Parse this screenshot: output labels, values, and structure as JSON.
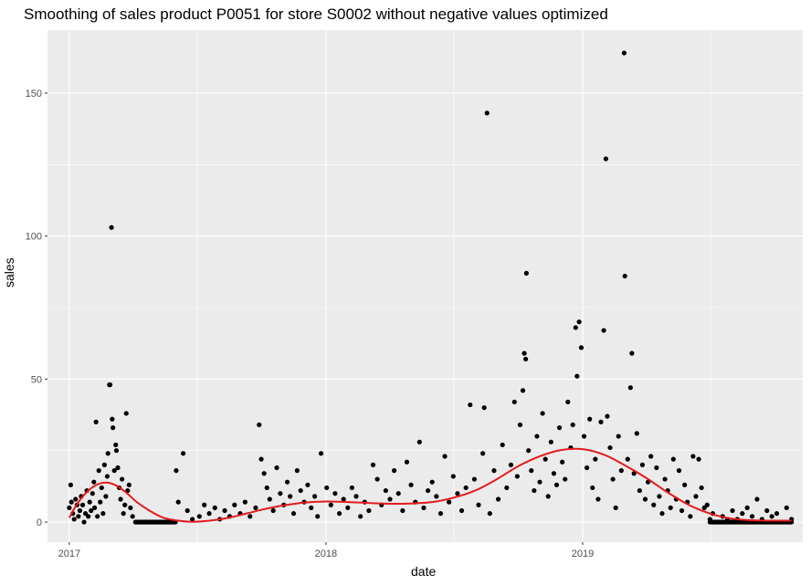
{
  "chart_data": {
    "type": "scatter",
    "title": "Smoothing of sales product P0051 for store S0002 without negative values optimized",
    "xlabel": "date",
    "ylabel": "sales",
    "x_ticks": [
      "2017",
      "2018",
      "2019"
    ],
    "y_ticks": [
      0,
      50,
      100,
      150
    ],
    "ylim": [
      -7,
      172
    ],
    "xlim": [
      "2016-12-01",
      "2019-11-10"
    ],
    "grid": true,
    "colors": {
      "points": "#000000",
      "smooth": "#e31a1c",
      "panel": "#ebebeb",
      "grid": "#ffffff"
    },
    "series": [
      {
        "kind": "points",
        "points": [
          [
            "2017-01-01",
            5
          ],
          [
            "2017-01-03",
            13
          ],
          [
            "2017-01-04",
            7
          ],
          [
            "2017-01-06",
            3
          ],
          [
            "2017-01-08",
            1
          ],
          [
            "2017-01-10",
            8
          ],
          [
            "2017-01-12",
            6
          ],
          [
            "2017-01-14",
            2
          ],
          [
            "2017-01-16",
            4
          ],
          [
            "2017-01-18",
            9
          ],
          [
            "2017-01-20",
            6
          ],
          [
            "2017-01-22",
            0
          ],
          [
            "2017-01-24",
            3
          ],
          [
            "2017-01-26",
            11
          ],
          [
            "2017-01-28",
            2
          ],
          [
            "2017-01-30",
            7
          ],
          [
            "2017-02-01",
            4
          ],
          [
            "2017-02-03",
            10
          ],
          [
            "2017-02-05",
            14
          ],
          [
            "2017-02-06",
            5
          ],
          [
            "2017-02-08",
            35
          ],
          [
            "2017-02-10",
            2
          ],
          [
            "2017-02-12",
            18
          ],
          [
            "2017-02-14",
            7
          ],
          [
            "2017-02-16",
            12
          ],
          [
            "2017-02-18",
            3
          ],
          [
            "2017-02-20",
            20
          ],
          [
            "2017-02-22",
            9
          ],
          [
            "2017-02-24",
            16
          ],
          [
            "2017-02-25",
            24
          ],
          [
            "2017-02-27",
            48
          ],
          [
            "2017-02-28",
            48
          ],
          [
            "2017-03-02",
            103
          ],
          [
            "2017-03-03",
            36
          ],
          [
            "2017-03-04",
            33
          ],
          [
            "2017-03-06",
            18
          ],
          [
            "2017-03-08",
            27
          ],
          [
            "2017-03-09",
            25
          ],
          [
            "2017-03-11",
            19
          ],
          [
            "2017-03-13",
            12
          ],
          [
            "2017-03-15",
            8
          ],
          [
            "2017-03-17",
            15
          ],
          [
            "2017-03-19",
            3
          ],
          [
            "2017-03-21",
            6
          ],
          [
            "2017-03-23",
            38
          ],
          [
            "2017-03-25",
            11
          ],
          [
            "2017-03-27",
            13
          ],
          [
            "2017-03-29",
            5
          ],
          [
            "2017-04-01",
            2
          ],
          [
            "2017-06-05",
            7
          ],
          [
            "2017-06-12",
            24
          ],
          [
            "2017-06-02",
            18
          ],
          [
            "2017-06-18",
            4
          ],
          [
            "2017-06-25",
            1
          ],
          [
            "2017-07-05",
            2
          ],
          [
            "2017-07-12",
            6
          ],
          [
            "2017-07-19",
            3
          ],
          [
            "2017-07-27",
            5
          ],
          [
            "2017-08-03",
            1
          ],
          [
            "2017-08-10",
            4
          ],
          [
            "2017-08-17",
            2
          ],
          [
            "2017-08-24",
            6
          ],
          [
            "2017-09-01",
            3
          ],
          [
            "2017-09-08",
            7
          ],
          [
            "2017-09-15",
            2
          ],
          [
            "2017-09-23",
            5
          ],
          [
            "2017-09-28",
            34
          ],
          [
            "2017-10-01",
            22
          ],
          [
            "2017-10-05",
            17
          ],
          [
            "2017-10-09",
            12
          ],
          [
            "2017-10-13",
            8
          ],
          [
            "2017-10-18",
            4
          ],
          [
            "2017-10-23",
            19
          ],
          [
            "2017-10-28",
            10
          ],
          [
            "2017-11-02",
            6
          ],
          [
            "2017-11-07",
            14
          ],
          [
            "2017-11-11",
            9
          ],
          [
            "2017-11-16",
            3
          ],
          [
            "2017-11-21",
            18
          ],
          [
            "2017-11-26",
            11
          ],
          [
            "2017-12-01",
            7
          ],
          [
            "2017-12-06",
            13
          ],
          [
            "2017-12-11",
            5
          ],
          [
            "2017-12-16",
            9
          ],
          [
            "2017-12-20",
            2
          ],
          [
            "2017-12-25",
            24
          ],
          [
            "2018-01-02",
            12
          ],
          [
            "2018-01-08",
            6
          ],
          [
            "2018-01-14",
            10
          ],
          [
            "2018-01-20",
            3
          ],
          [
            "2018-01-26",
            8
          ],
          [
            "2018-02-01",
            5
          ],
          [
            "2018-02-07",
            12
          ],
          [
            "2018-02-13",
            9
          ],
          [
            "2018-02-19",
            2
          ],
          [
            "2018-02-25",
            7
          ],
          [
            "2018-03-03",
            4
          ],
          [
            "2018-03-09",
            20
          ],
          [
            "2018-03-15",
            15
          ],
          [
            "2018-03-21",
            6
          ],
          [
            "2018-03-27",
            11
          ],
          [
            "2018-04-02",
            8
          ],
          [
            "2018-04-08",
            18
          ],
          [
            "2018-04-14",
            10
          ],
          [
            "2018-04-20",
            4
          ],
          [
            "2018-04-26",
            21
          ],
          [
            "2018-05-02",
            13
          ],
          [
            "2018-05-08",
            7
          ],
          [
            "2018-05-14",
            28
          ],
          [
            "2018-05-20",
            5
          ],
          [
            "2018-05-26",
            11
          ],
          [
            "2018-06-01",
            14
          ],
          [
            "2018-06-07",
            9
          ],
          [
            "2018-06-13",
            3
          ],
          [
            "2018-06-19",
            23
          ],
          [
            "2018-06-25",
            7
          ],
          [
            "2018-07-01",
            16
          ],
          [
            "2018-07-07",
            10
          ],
          [
            "2018-07-13",
            4
          ],
          [
            "2018-07-19",
            12
          ],
          [
            "2018-07-25",
            41
          ],
          [
            "2018-07-31",
            15
          ],
          [
            "2018-08-06",
            6
          ],
          [
            "2018-08-12",
            24
          ],
          [
            "2018-08-14",
            40
          ],
          [
            "2018-08-18",
            143
          ],
          [
            "2018-08-22",
            3
          ],
          [
            "2018-08-28",
            18
          ],
          [
            "2018-09-03",
            8
          ],
          [
            "2018-09-09",
            27
          ],
          [
            "2018-09-15",
            12
          ],
          [
            "2018-09-21",
            20
          ],
          [
            "2018-09-26",
            42
          ],
          [
            "2018-09-30",
            16
          ],
          [
            "2018-10-04",
            34
          ],
          [
            "2018-10-08",
            46
          ],
          [
            "2018-10-10",
            59
          ],
          [
            "2018-10-12",
            57
          ],
          [
            "2018-10-13",
            87
          ],
          [
            "2018-10-16",
            25
          ],
          [
            "2018-10-20",
            18
          ],
          [
            "2018-10-24",
            11
          ],
          [
            "2018-10-28",
            30
          ],
          [
            "2018-11-01",
            14
          ],
          [
            "2018-11-05",
            38
          ],
          [
            "2018-11-09",
            22
          ],
          [
            "2018-11-13",
            9
          ],
          [
            "2018-11-17",
            28
          ],
          [
            "2018-11-21",
            17
          ],
          [
            "2018-11-25",
            13
          ],
          [
            "2018-11-29",
            33
          ],
          [
            "2018-12-03",
            21
          ],
          [
            "2018-12-07",
            15
          ],
          [
            "2018-12-11",
            42
          ],
          [
            "2018-12-15",
            26
          ],
          [
            "2018-12-18",
            34
          ],
          [
            "2018-12-22",
            68
          ],
          [
            "2018-12-24",
            51
          ],
          [
            "2018-12-27",
            70
          ],
          [
            "2018-12-30",
            61
          ],
          [
            "2019-01-03",
            30
          ],
          [
            "2019-01-07",
            19
          ],
          [
            "2019-01-11",
            36
          ],
          [
            "2019-01-15",
            12
          ],
          [
            "2019-01-19",
            22
          ],
          [
            "2019-01-23",
            8
          ],
          [
            "2019-01-27",
            35
          ],
          [
            "2019-01-31",
            67
          ],
          [
            "2019-02-03",
            127
          ],
          [
            "2019-02-05",
            37
          ],
          [
            "2019-02-09",
            26
          ],
          [
            "2019-02-13",
            15
          ],
          [
            "2019-02-17",
            5
          ],
          [
            "2019-02-21",
            30
          ],
          [
            "2019-02-25",
            18
          ],
          [
            "2019-03-01",
            164
          ],
          [
            "2019-03-02",
            86
          ],
          [
            "2019-03-06",
            22
          ],
          [
            "2019-03-10",
            47
          ],
          [
            "2019-03-12",
            59
          ],
          [
            "2019-03-15",
            17
          ],
          [
            "2019-03-19",
            31
          ],
          [
            "2019-03-23",
            11
          ],
          [
            "2019-03-27",
            20
          ],
          [
            "2019-03-31",
            8
          ],
          [
            "2019-04-04",
            14
          ],
          [
            "2019-04-08",
            23
          ],
          [
            "2019-04-12",
            6
          ],
          [
            "2019-04-16",
            19
          ],
          [
            "2019-04-20",
            9
          ],
          [
            "2019-04-24",
            3
          ],
          [
            "2019-04-28",
            15
          ],
          [
            "2019-05-02",
            11
          ],
          [
            "2019-05-06",
            5
          ],
          [
            "2019-05-10",
            22
          ],
          [
            "2019-05-14",
            8
          ],
          [
            "2019-05-18",
            18
          ],
          [
            "2019-05-22",
            4
          ],
          [
            "2019-05-26",
            13
          ],
          [
            "2019-05-30",
            7
          ],
          [
            "2019-06-03",
            2
          ],
          [
            "2019-06-07",
            23
          ],
          [
            "2019-06-11",
            9
          ],
          [
            "2019-06-15",
            22
          ],
          [
            "2019-06-19",
            12
          ],
          [
            "2019-06-23",
            5
          ],
          [
            "2019-06-27",
            6
          ],
          [
            "2019-07-01",
            1
          ],
          [
            "2019-07-05",
            3
          ],
          [
            "2019-07-12",
            0
          ],
          [
            "2019-07-19",
            2
          ],
          [
            "2019-07-26",
            1
          ],
          [
            "2019-08-02",
            4
          ],
          [
            "2019-08-09",
            1
          ],
          [
            "2019-08-16",
            3
          ],
          [
            "2019-08-23",
            5
          ],
          [
            "2019-08-30",
            2
          ],
          [
            "2019-09-06",
            8
          ],
          [
            "2019-09-13",
            1
          ],
          [
            "2019-09-20",
            4
          ],
          [
            "2019-09-27",
            2
          ],
          [
            "2019-10-04",
            3
          ],
          [
            "2019-10-11",
            0
          ],
          [
            "2019-10-18",
            5
          ],
          [
            "2019-10-25",
            1
          ]
        ]
      },
      {
        "kind": "smooth",
        "points": [
          [
            "2017-01-01",
            1.5
          ],
          [
            "2017-01-10",
            5.5
          ],
          [
            "2017-01-22",
            9.5
          ],
          [
            "2017-02-05",
            12.5
          ],
          [
            "2017-02-20",
            13.8
          ],
          [
            "2017-03-07",
            13
          ],
          [
            "2017-03-22",
            10.5
          ],
          [
            "2017-04-07",
            7
          ],
          [
            "2017-04-25",
            4
          ],
          [
            "2017-05-15",
            1.5
          ],
          [
            "2017-06-05",
            0.5
          ],
          [
            "2017-06-25",
            0.1
          ],
          [
            "2017-07-20",
            0.5
          ],
          [
            "2017-08-15",
            1.5
          ],
          [
            "2017-09-10",
            3
          ],
          [
            "2017-10-05",
            4.5
          ],
          [
            "2017-11-01",
            5.8
          ],
          [
            "2017-12-01",
            6.8
          ],
          [
            "2018-01-01",
            7.2
          ],
          [
            "2018-02-01",
            7
          ],
          [
            "2018-03-01",
            6.7
          ],
          [
            "2018-04-01",
            6.4
          ],
          [
            "2018-05-01",
            6.5
          ],
          [
            "2018-06-01",
            7
          ],
          [
            "2018-07-01",
            8.5
          ],
          [
            "2018-08-01",
            11
          ],
          [
            "2018-09-01",
            15
          ],
          [
            "2018-10-01",
            19.5
          ],
          [
            "2018-11-01",
            23
          ],
          [
            "2018-12-01",
            25.2
          ],
          [
            "2019-01-01",
            25.5
          ],
          [
            "2019-02-01",
            23.5
          ],
          [
            "2019-03-01",
            20
          ],
          [
            "2019-04-01",
            15.5
          ],
          [
            "2019-05-01",
            10.5
          ],
          [
            "2019-06-01",
            6
          ],
          [
            "2019-07-01",
            3
          ],
          [
            "2019-08-01",
            1.2
          ],
          [
            "2019-09-01",
            0.6
          ],
          [
            "2019-10-01",
            0.5
          ],
          [
            "2019-10-25",
            0.5
          ]
        ]
      }
    ],
    "zero_runs": [
      [
        "2017-04-05",
        "2017-06-01"
      ],
      [
        "2019-07-01",
        "2019-10-25"
      ]
    ]
  }
}
